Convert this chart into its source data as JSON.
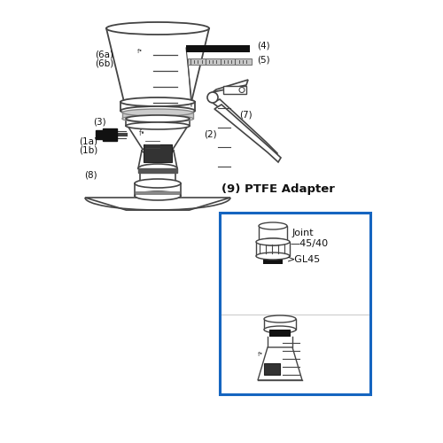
{
  "bg_color": "#ffffff",
  "line_color": "#444444",
  "dark_color": "#111111",
  "gray_color": "#888888",
  "light_gray": "#cccccc",
  "blue_box_color": "#1565c0",
  "label_color": "#111111",
  "labels": {
    "6a": "(6a)",
    "6b": "(6b)",
    "3": "(3)",
    "2": "(2)",
    "4": "(4)",
    "5": "(5)",
    "7": "(7)",
    "8": "(8)",
    "1a": "(1a)",
    "1b": "(1b)",
    "9": "(9) PTFE Adapter",
    "joint": "Joint",
    "joint_val": "—45/40",
    "gl45": ">GL45"
  },
  "font_size_label": 7.5,
  "font_size_box_title": 9.5,
  "font_size_box_label": 8
}
